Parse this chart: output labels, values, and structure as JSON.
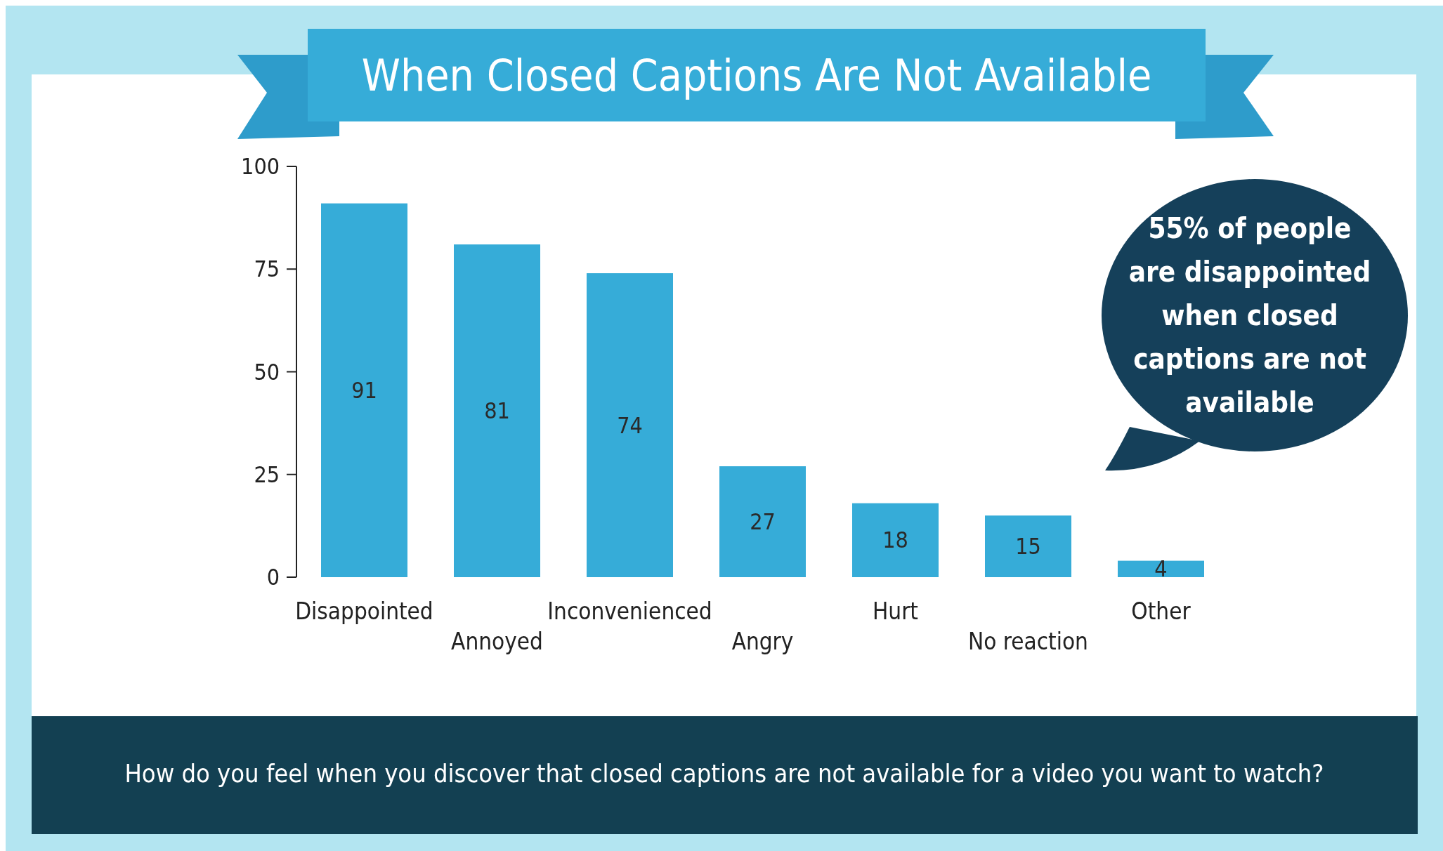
{
  "chart_data": {
    "type": "bar",
    "title": "When Closed Captions Are Not Available",
    "categories": [
      "Disappointed",
      "Annoyed",
      "Inconvenienced",
      "Angry",
      "Hurt",
      "No reaction",
      "Other"
    ],
    "values": [
      91,
      81,
      74,
      27,
      18,
      15,
      4
    ],
    "color": "#36acd8",
    "ylim": [
      0,
      100
    ],
    "yticks": [
      0,
      25,
      50,
      75,
      100
    ],
    "grid": false,
    "data_labels": true,
    "annotations": [
      "55% of people are disappointed when closed captions are not available",
      "How do you feel when you discover that closed captions are not available for a video you want to watch?"
    ]
  }
}
